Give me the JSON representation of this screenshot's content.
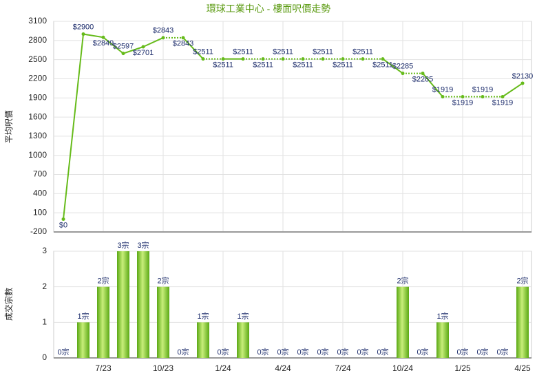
{
  "chart_data": [
    {
      "type": "line",
      "title": "環球工業中心 - 樓面呎價走勢",
      "y_label": "平均呎價",
      "categories": [
        null,
        null,
        "7/23",
        null,
        null,
        "10/23",
        null,
        null,
        "1/24",
        null,
        null,
        "4/24",
        null,
        null,
        "7/24",
        null,
        null,
        "10/24",
        null,
        null,
        "1/25",
        null,
        null,
        "4/25"
      ],
      "series": [
        {
          "name": "平均呎價",
          "color": "#66bb1a",
          "values": [
            0,
            2900,
            2849,
            2597,
            2701,
            2843,
            2843,
            2511,
            2511,
            2511,
            2511,
            2511,
            2511,
            2511,
            2511,
            2511,
            2511,
            2285,
            2285,
            1919,
            1919,
            1919,
            1919,
            2130
          ],
          "value_labels": [
            "$0",
            "$2900",
            "$2849",
            "$2597",
            "$2701",
            "$2843",
            "$2843",
            "$2511",
            "$2511",
            "$2511",
            "$2511",
            "$2511",
            "$2511",
            "$2511",
            "$2511",
            "$2511",
            "$2511",
            "$2285",
            "$2285",
            "$1919",
            "$1919",
            "$1919",
            "$1919",
            "$2130"
          ]
        }
      ],
      "ylim": [
        -200,
        3100
      ],
      "yticks": [
        -200,
        100,
        400,
        700,
        1000,
        1300,
        1600,
        1900,
        2200,
        2500,
        2800,
        3100
      ],
      "grid": true
    },
    {
      "type": "bar",
      "y_label": "成交宗數",
      "color": "#7cc22a",
      "values": [
        0,
        1,
        2,
        3,
        3,
        2,
        0,
        1,
        0,
        1,
        0,
        0,
        0,
        0,
        0,
        0,
        0,
        2,
        0,
        1,
        0,
        0,
        0,
        2
      ],
      "value_labels": [
        "0宗",
        "1宗",
        "2宗",
        "3宗",
        "3宗",
        "2宗",
        "0宗",
        "1宗",
        "0宗",
        "1宗",
        "0宗",
        "0宗",
        "0宗",
        "0宗",
        "0宗",
        "0宗",
        "0宗",
        "2宗",
        "0宗",
        "1宗",
        "0宗",
        "0宗",
        "0宗",
        "2宗"
      ],
      "ylim": [
        0,
        3
      ],
      "yticks": [
        0,
        1,
        2,
        3
      ],
      "grid": true
    }
  ]
}
